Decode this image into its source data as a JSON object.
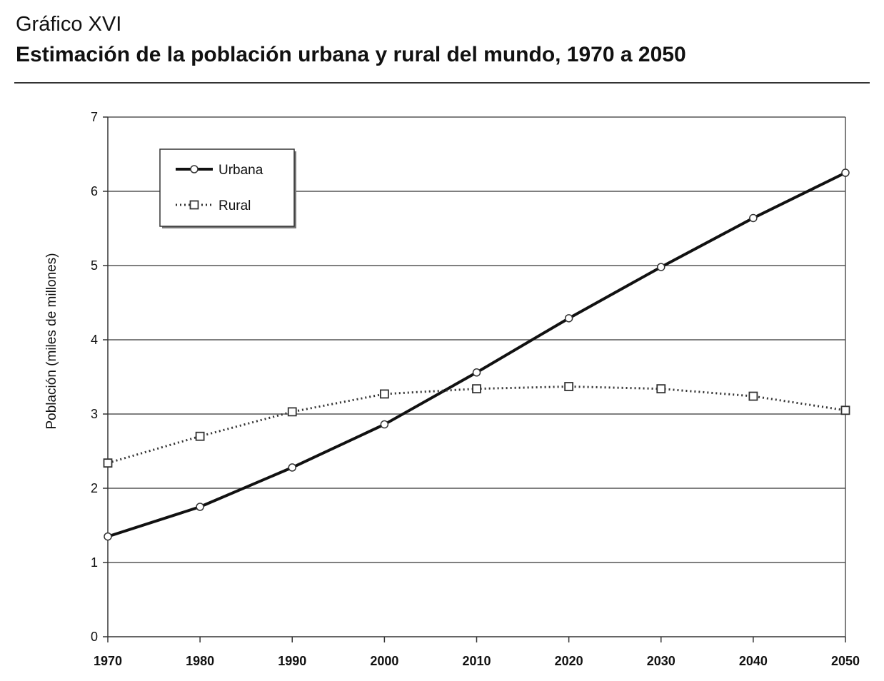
{
  "header": {
    "label": "Gráfico XVI",
    "title": "Estimación de la población urbana y rural del mundo, 1970 a 2050"
  },
  "chart_data": {
    "type": "line",
    "x": [
      1970,
      1980,
      1990,
      2000,
      2010,
      2020,
      2030,
      2040,
      2050
    ],
    "ylabel": "Población (miles de millones)",
    "xlabel": "",
    "ylim": [
      0,
      7
    ],
    "yticks": [
      0,
      1,
      2,
      3,
      4,
      5,
      6,
      7
    ],
    "grid": "horizontal",
    "legend_position": "top-left",
    "series": [
      {
        "name": "Urbana",
        "style": "solid",
        "marker": "circle",
        "values": [
          1.35,
          1.75,
          2.28,
          2.86,
          3.56,
          4.29,
          4.98,
          5.64,
          6.25
        ]
      },
      {
        "name": "Rural",
        "style": "dotted",
        "marker": "square",
        "values": [
          2.34,
          2.7,
          3.03,
          3.27,
          3.34,
          3.37,
          3.34,
          3.24,
          3.05
        ]
      }
    ]
  }
}
